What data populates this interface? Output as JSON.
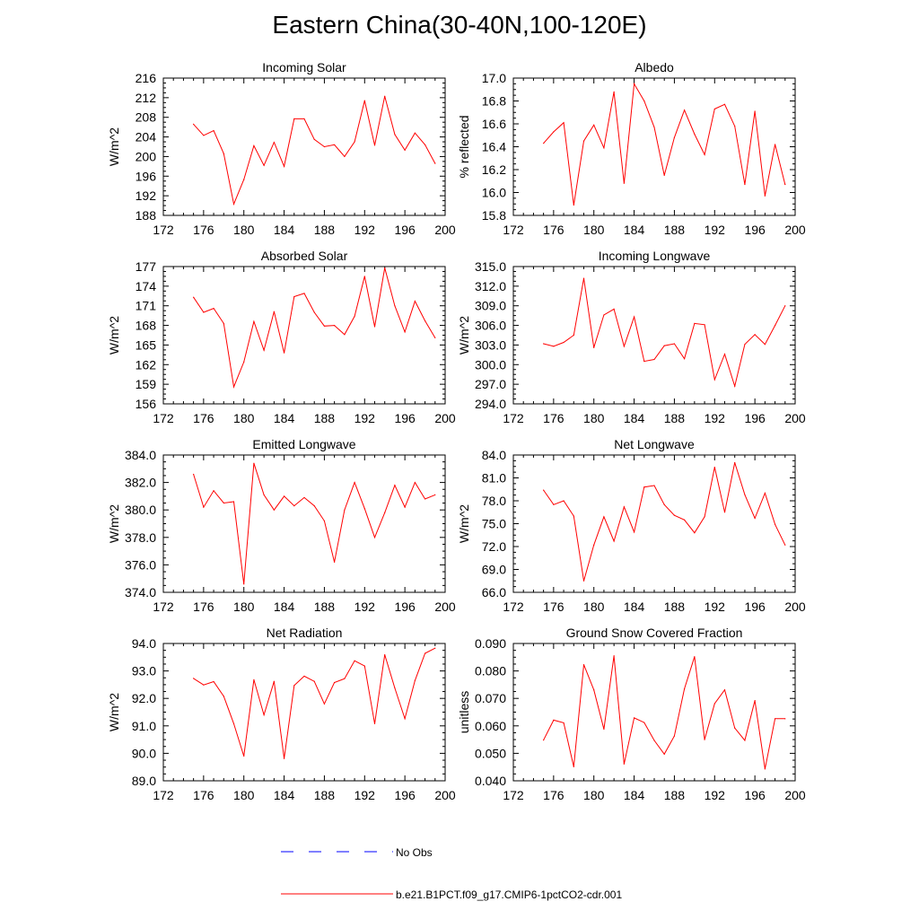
{
  "title": "Eastern China(30-40N,100-120E)",
  "colors": {
    "model": "#ff0000",
    "obs": "#0000ff",
    "axis": "#000000",
    "background": "#ffffff"
  },
  "legend": {
    "obs_label": "No Obs",
    "model_label": "b.e21.B1PCT.f09_g17.CMIP6-1pctCO2-cdr.001"
  },
  "chart_data": [
    {
      "type": "line",
      "title": "Incoming Solar",
      "ylabel": "W/m^2",
      "xlim": [
        172,
        200
      ],
      "xticks": [
        "172",
        "176",
        "180",
        "184",
        "188",
        "192",
        "196",
        "200"
      ],
      "ylim": [
        188,
        216
      ],
      "yticks": [
        "188",
        "192",
        "196",
        "200",
        "204",
        "208",
        "212",
        "216"
      ],
      "x": [
        175,
        176,
        177,
        178,
        179,
        180,
        181,
        182,
        183,
        184,
        185,
        186,
        187,
        188,
        189,
        190,
        191,
        192,
        193,
        194,
        195,
        196,
        197,
        198,
        199
      ],
      "series": [
        {
          "values": [
            206.6,
            204.3,
            205.3,
            200.6,
            190.3,
            195.3,
            202.2,
            198.2,
            202.9,
            198.0,
            207.7,
            207.7,
            203.5,
            202.0,
            202.4,
            200.0,
            203.0,
            211.4,
            202.3,
            212.3,
            204.5,
            201.3,
            204.8,
            202.4,
            198.6
          ]
        }
      ]
    },
    {
      "type": "line",
      "title": "Albedo",
      "ylabel": "% reflected",
      "xlim": [
        172,
        200
      ],
      "xticks": [
        "172",
        "176",
        "180",
        "184",
        "188",
        "192",
        "196",
        "200"
      ],
      "ylim": [
        15.8,
        17.0
      ],
      "yticks": [
        "15.8",
        "16.0",
        "16.2",
        "16.4",
        "16.6",
        "16.8",
        "17.0"
      ],
      "x": [
        175,
        176,
        177,
        178,
        179,
        180,
        181,
        182,
        183,
        184,
        185,
        186,
        187,
        188,
        189,
        190,
        191,
        192,
        193,
        194,
        195,
        196,
        197,
        198,
        199
      ],
      "series": [
        {
          "values": [
            16.43,
            16.53,
            16.61,
            15.89,
            16.45,
            16.59,
            16.39,
            16.88,
            16.08,
            16.95,
            16.8,
            16.57,
            16.15,
            16.48,
            16.72,
            16.51,
            16.33,
            16.73,
            16.77,
            16.58,
            16.07,
            16.71,
            15.97,
            16.42,
            16.07
          ]
        }
      ]
    },
    {
      "type": "line",
      "title": "Absorbed Solar",
      "ylabel": "W/m^2",
      "xlim": [
        172,
        200
      ],
      "xticks": [
        "172",
        "176",
        "180",
        "184",
        "188",
        "192",
        "196",
        "200"
      ],
      "ylim": [
        156,
        177
      ],
      "yticks": [
        "156",
        "159",
        "162",
        "165",
        "168",
        "171",
        "174",
        "177"
      ],
      "x": [
        175,
        176,
        177,
        178,
        179,
        180,
        181,
        182,
        183,
        184,
        185,
        186,
        187,
        188,
        189,
        190,
        191,
        192,
        193,
        194,
        195,
        196,
        197,
        198,
        199
      ],
      "series": [
        {
          "values": [
            172.3,
            170.0,
            170.6,
            168.3,
            158.6,
            162.4,
            168.6,
            164.2,
            170.1,
            163.8,
            172.4,
            172.9,
            170.0,
            167.9,
            168.0,
            166.6,
            169.4,
            175.5,
            167.8,
            176.8,
            171.0,
            167.0,
            171.7,
            168.7,
            166.1
          ]
        }
      ]
    },
    {
      "type": "line",
      "title": "Incoming Longwave",
      "ylabel": "W/m^2",
      "xlim": [
        172,
        200
      ],
      "xticks": [
        "172",
        "176",
        "180",
        "184",
        "188",
        "192",
        "196",
        "200"
      ],
      "ylim": [
        294.0,
        315.0
      ],
      "yticks": [
        "294.0",
        "297.0",
        "300.0",
        "303.0",
        "306.0",
        "309.0",
        "312.0",
        "315.0"
      ],
      "x": [
        175,
        176,
        177,
        178,
        179,
        180,
        181,
        182,
        183,
        184,
        185,
        186,
        187,
        188,
        189,
        190,
        191,
        192,
        193,
        194,
        195,
        196,
        197,
        198,
        199
      ],
      "series": [
        {
          "values": [
            303.2,
            302.8,
            303.4,
            304.5,
            313.2,
            302.6,
            307.6,
            308.5,
            302.8,
            307.3,
            300.5,
            300.8,
            302.9,
            303.2,
            300.9,
            306.3,
            306.1,
            297.7,
            301.6,
            296.7,
            303.1,
            304.6,
            303.1,
            306.0,
            309.0
          ]
        }
      ]
    },
    {
      "type": "line",
      "title": "Emitted Longwave",
      "ylabel": "W/m^2",
      "xlim": [
        172,
        200
      ],
      "xticks": [
        "172",
        "176",
        "180",
        "184",
        "188",
        "192",
        "196",
        "200"
      ],
      "ylim": [
        374.0,
        384.0
      ],
      "yticks": [
        "374.0",
        "376.0",
        "378.0",
        "380.0",
        "382.0",
        "384.0"
      ],
      "x": [
        175,
        176,
        177,
        178,
        179,
        180,
        181,
        182,
        183,
        184,
        185,
        186,
        187,
        188,
        189,
        190,
        191,
        192,
        193,
        194,
        195,
        196,
        197,
        198,
        199
      ],
      "series": [
        {
          "values": [
            382.6,
            380.2,
            381.4,
            380.5,
            380.6,
            374.6,
            383.4,
            381.1,
            380.0,
            381.0,
            380.3,
            380.9,
            380.3,
            379.2,
            376.2,
            380.0,
            382.0,
            380.1,
            378.0,
            379.8,
            381.8,
            380.2,
            382.0,
            380.8,
            381.1
          ]
        }
      ]
    },
    {
      "type": "line",
      "title": "Net Longwave",
      "ylabel": "W/m^2",
      "xlim": [
        172,
        200
      ],
      "xticks": [
        "172",
        "176",
        "180",
        "184",
        "188",
        "192",
        "196",
        "200"
      ],
      "ylim": [
        66.0,
        84.0
      ],
      "yticks": [
        "66.0",
        "69.0",
        "72.0",
        "75.0",
        "78.0",
        "81.0",
        "84.0"
      ],
      "x": [
        175,
        176,
        177,
        178,
        179,
        180,
        181,
        182,
        183,
        184,
        185,
        186,
        187,
        188,
        189,
        190,
        191,
        192,
        193,
        194,
        195,
        196,
        197,
        198,
        199
      ],
      "series": [
        {
          "values": [
            79.4,
            77.5,
            78.0,
            76.0,
            67.5,
            72.2,
            75.9,
            72.7,
            77.2,
            73.9,
            79.8,
            80.0,
            77.5,
            76.1,
            75.5,
            73.8,
            75.9,
            82.4,
            76.5,
            83.0,
            78.8,
            75.7,
            79.0,
            74.9,
            72.2
          ]
        }
      ]
    },
    {
      "type": "line",
      "title": "Net Radiation",
      "ylabel": "W/m^2",
      "xlim": [
        172,
        200
      ],
      "xticks": [
        "172",
        "176",
        "180",
        "184",
        "188",
        "192",
        "196",
        "200"
      ],
      "ylim": [
        89.0,
        94.0
      ],
      "yticks": [
        "89.0",
        "90.0",
        "91.0",
        "92.0",
        "93.0",
        "94.0"
      ],
      "x": [
        175,
        176,
        177,
        178,
        179,
        180,
        181,
        182,
        183,
        184,
        185,
        186,
        187,
        188,
        189,
        190,
        191,
        192,
        193,
        194,
        195,
        196,
        197,
        198,
        199
      ],
      "series": [
        {
          "values": [
            92.73,
            92.49,
            92.61,
            92.08,
            91.08,
            89.9,
            92.68,
            91.4,
            92.62,
            89.81,
            92.47,
            92.81,
            92.62,
            91.8,
            92.58,
            92.72,
            93.37,
            93.18,
            91.08,
            93.59,
            92.38,
            91.26,
            92.65,
            93.64,
            93.83
          ]
        }
      ]
    },
    {
      "type": "line",
      "title": "Ground Snow Covered Fraction",
      "ylabel": "unitless",
      "xlim": [
        172,
        200
      ],
      "xticks": [
        "172",
        "176",
        "180",
        "184",
        "188",
        "192",
        "196",
        "200"
      ],
      "ylim": [
        0.04,
        0.09
      ],
      "yticks": [
        "0.040",
        "0.050",
        "0.060",
        "0.070",
        "0.080",
        "0.090"
      ],
      "x": [
        175,
        176,
        177,
        178,
        179,
        180,
        181,
        182,
        183,
        184,
        185,
        186,
        187,
        188,
        189,
        190,
        191,
        192,
        193,
        194,
        195,
        196,
        197,
        198,
        199
      ],
      "series": [
        {
          "values": [
            0.0548,
            0.0621,
            0.0611,
            0.0451,
            0.0823,
            0.0731,
            0.0588,
            0.0855,
            0.0461,
            0.0629,
            0.0612,
            0.0547,
            0.0497,
            0.0563,
            0.0735,
            0.0852,
            0.055,
            0.0681,
            0.0731,
            0.0592,
            0.0547,
            0.0692,
            0.0443,
            0.0626,
            0.0626
          ]
        }
      ]
    }
  ]
}
